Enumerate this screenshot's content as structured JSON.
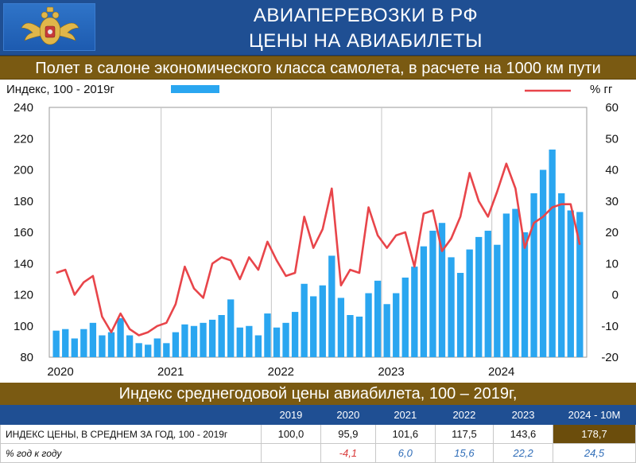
{
  "header": {
    "line1": "АВИАПЕРЕВОЗКИ В РФ",
    "line2": "ЦЕНЫ НА АВИАБИЛЕТЫ",
    "emblem_icon": "double-headed-eagle-emblem"
  },
  "subtitle": "Полет в салоне экономического класса самолета, в расчете на 1000 км пути",
  "colors": {
    "header_bg": "#1f4f93",
    "band_bg": "#7a5a12",
    "bar": "#2aa6f0",
    "line": "#e8454a",
    "highlight_cell": "#6b4d0c",
    "pct_positive": "#2f6db8",
    "pct_negative": "#d93a3a"
  },
  "chart_data": {
    "type": "bar+line",
    "legend": {
      "bar_label": "Индекс, 100 - 2019г",
      "line_label": "%  гг",
      "placement": "top"
    },
    "x_labels": [
      "2020",
      "2021",
      "2022",
      "2023",
      "2024"
    ],
    "y_left": {
      "range": [
        80,
        240
      ],
      "ticks": [
        80,
        100,
        120,
        140,
        160,
        180,
        200,
        220,
        240
      ]
    },
    "y_right": {
      "range": [
        -20,
        60
      ],
      "ticks": [
        -20,
        -10,
        0,
        10,
        20,
        30,
        40,
        50,
        60
      ]
    },
    "grid": "vertical lines at year boundaries",
    "series": [
      {
        "name": "Индекс, 100 - 2019г",
        "type": "bar",
        "axis": "left",
        "values": [
          97,
          98,
          92,
          98,
          102,
          94,
          96,
          105,
          94,
          89,
          88,
          92,
          89,
          96,
          101,
          100,
          102,
          104,
          107,
          117,
          99,
          100,
          94,
          108,
          99,
          102,
          109,
          127,
          119,
          126,
          145,
          118,
          107,
          106,
          121,
          129,
          114,
          121,
          131,
          138,
          151,
          161,
          166,
          144,
          134,
          149,
          157,
          161,
          152,
          172,
          175,
          160,
          185,
          200,
          213,
          185,
          174,
          173
        ]
      },
      {
        "name": "%  гг",
        "type": "line",
        "axis": "right",
        "values": [
          7,
          8,
          0,
          4,
          6,
          -7,
          -12,
          -6,
          -11,
          -13,
          -12,
          -10,
          -9,
          -3,
          9,
          2,
          -1,
          10,
          12,
          11,
          5,
          12,
          8,
          17,
          11,
          6,
          7,
          25,
          15,
          21,
          34,
          3,
          8,
          7,
          28,
          19,
          15,
          19,
          20,
          9,
          26,
          27,
          14,
          18,
          25,
          39,
          30,
          25,
          33,
          42,
          34,
          15,
          23,
          25,
          28,
          29,
          29,
          16
        ]
      }
    ]
  },
  "table": {
    "title": "Индекс среднегодовой цены авиабилета, 100 – 2019г,",
    "years": [
      "2019",
      "2020",
      "2021",
      "2022",
      "2023",
      "2024 - 10М"
    ],
    "rows": [
      {
        "label": "ИНДЕКС ЦЕНЫ, В СРЕДНЕМ ЗА ГОД, 100 - 2019г",
        "values": [
          "100,0",
          "95,9",
          "101,6",
          "117,5",
          "143,6",
          "178,7"
        ]
      },
      {
        "label": "% год к году",
        "values": [
          "",
          "-4,1",
          "6,0",
          "15,6",
          "22,2",
          "24,5"
        ]
      }
    ]
  }
}
